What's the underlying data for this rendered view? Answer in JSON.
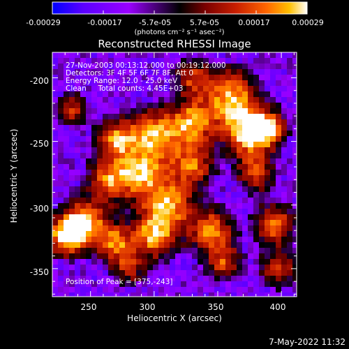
{
  "chart_data": {
    "type": "heatmap",
    "title": "Reconstructed RHESSI Image",
    "xlabel": "Heliocentric X (arcsec)",
    "ylabel": "Heliocentric Y (arcsec)",
    "xlim": [
      220,
      412
    ],
    "ylim": [
      -372,
      -180
    ],
    "x_ticks": [
      250,
      300,
      350,
      400
    ],
    "y_ticks": [
      -200,
      -250,
      -300,
      -350
    ],
    "colorbar": {
      "label": "(photons cm⁻² s⁻¹ asec⁻²)",
      "range": [
        -0.00029,
        0.00029
      ],
      "tick_labels": [
        "-0.00029",
        "-0.00017",
        "-5.7e-05",
        "5.7e-05",
        "0.00017",
        "0.00029"
      ],
      "colors": [
        "#0000ff",
        "#5a00ff",
        "#9a00ff",
        "#000000",
        "#7a0000",
        "#c81e00",
        "#ff6600",
        "#ffc000",
        "#ffffff"
      ]
    },
    "annotations": {
      "time_range": "27-Nov-2003 00:13:12.000 to 00:19:12.000",
      "detectors": "Detectors: 3F 4F 5F 6F 7F 8F, Att 0",
      "energy_range": "Energy Range: 12.0 - 25.0 keV",
      "method_counts": "Clean     Total counts: 4.45E+03",
      "peak_position": "Position of Peak = [375,-243]"
    },
    "footer_date": "7-May-2022 11:32",
    "grid": false
  }
}
